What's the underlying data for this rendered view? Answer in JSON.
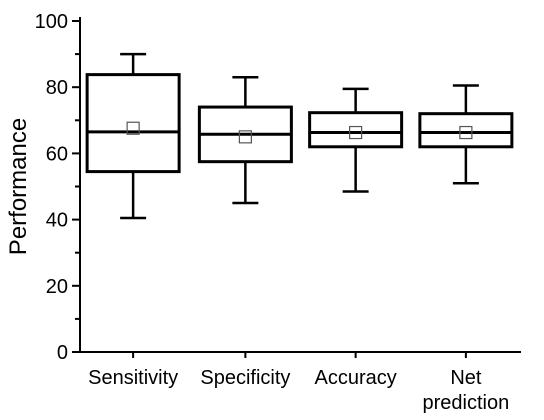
{
  "chart_data": {
    "type": "box",
    "ylabel": "Performance",
    "ylim": [
      0,
      100
    ],
    "yticks": [
      "0",
      "20",
      "40",
      "60",
      "80",
      "100"
    ],
    "categories": [
      {
        "label_lines": [
          "Sensitivity"
        ],
        "whisker_low": 40.5,
        "q1": 54.5,
        "median": 66.5,
        "q3": 83.8,
        "whisker_high": 90,
        "mean": 67.6
      },
      {
        "label_lines": [
          "Specificity"
        ],
        "whisker_low": 45,
        "q1": 57.5,
        "median": 65.8,
        "q3": 74,
        "whisker_high": 83,
        "mean": 65
      },
      {
        "label_lines": [
          "Accuracy"
        ],
        "whisker_low": 48.5,
        "q1": 62,
        "median": 66.3,
        "q3": 72.3,
        "whisker_high": 79.5,
        "mean": 66.3
      },
      {
        "label_lines": [
          "Net",
          "prediction"
        ],
        "whisker_low": 51,
        "q1": 62,
        "median": 66.3,
        "q3": 72,
        "whisker_high": 80.5,
        "mean": 66.3
      }
    ],
    "grid": false,
    "legend": "none",
    "colors": {
      "box_stroke": "#000000",
      "mean_marker": "#555555"
    }
  }
}
